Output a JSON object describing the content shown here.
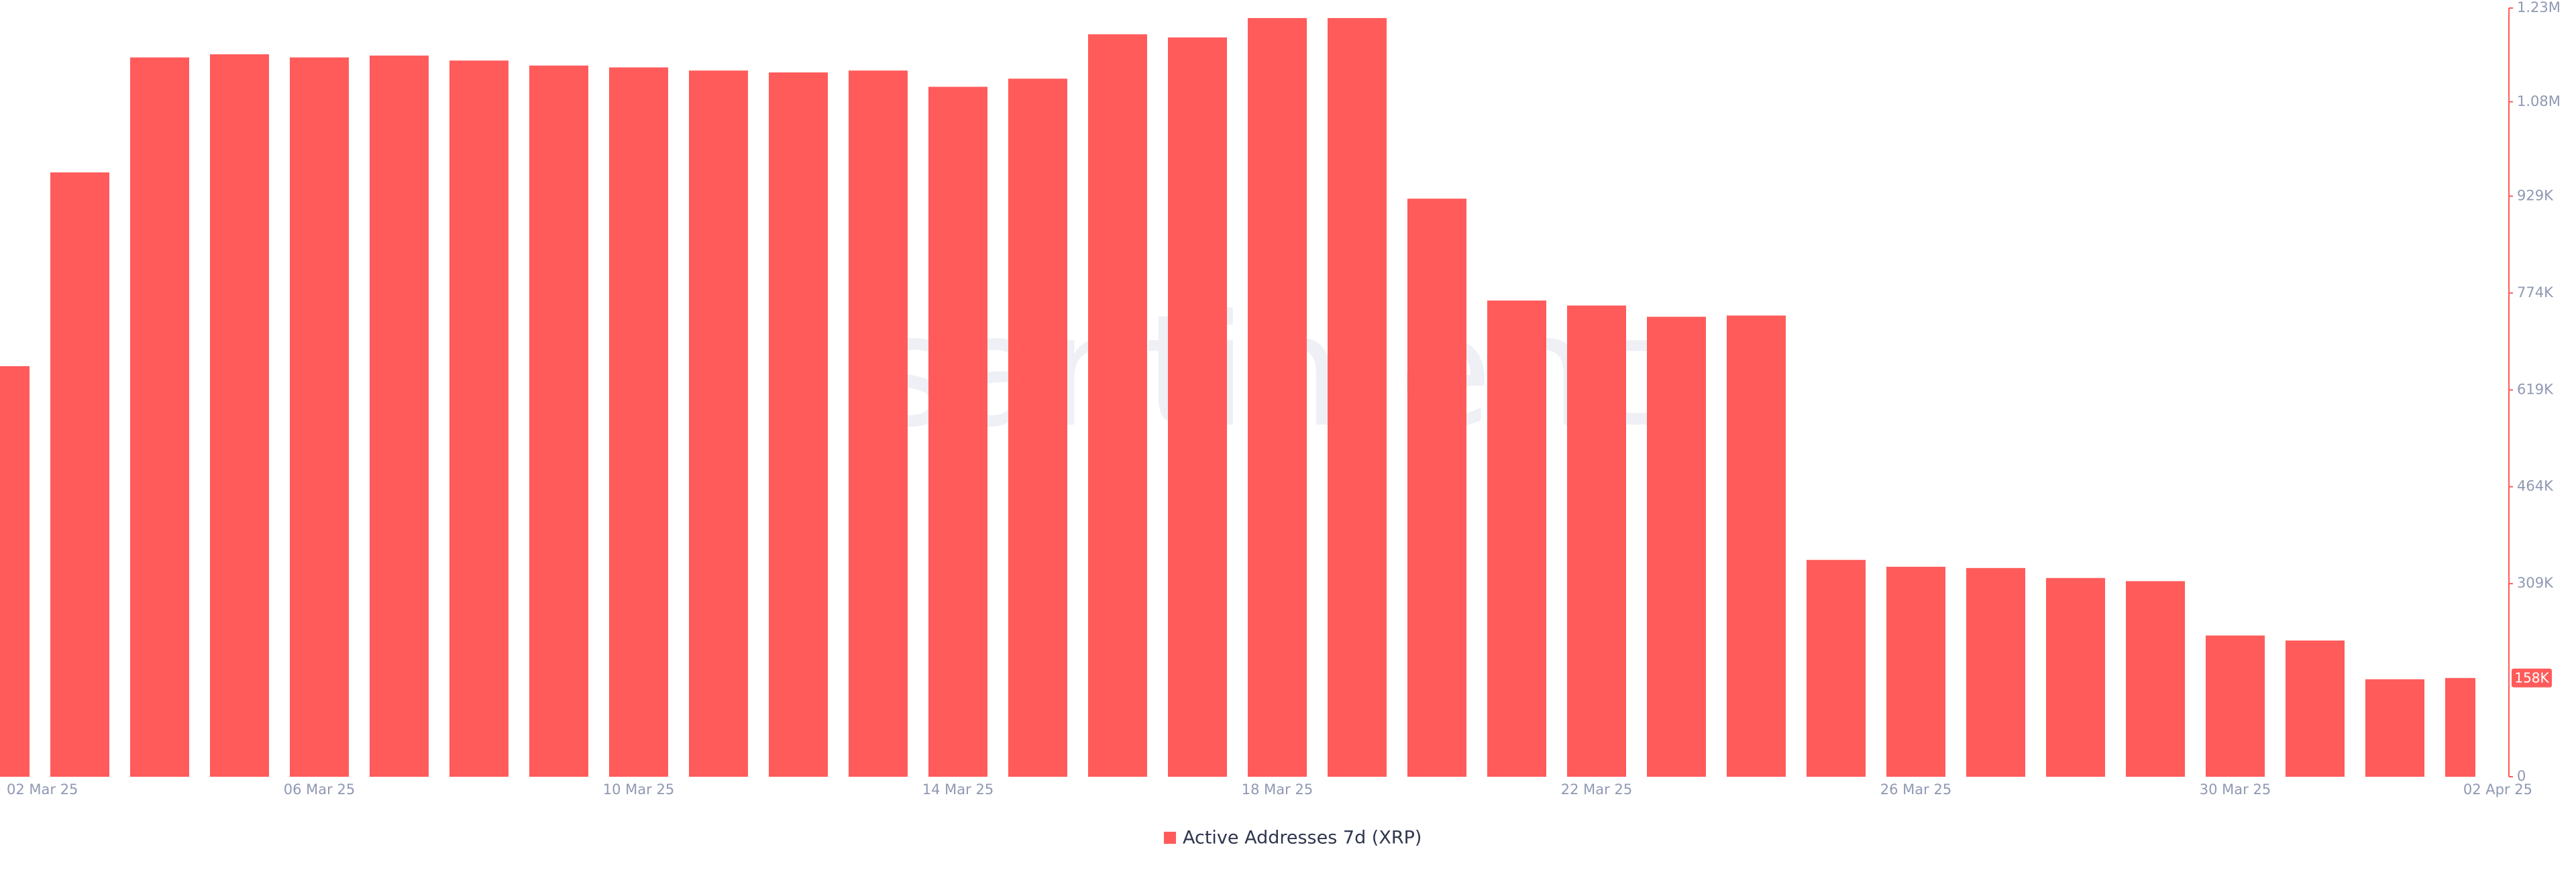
{
  "chart_data": {
    "type": "bar",
    "watermark": "santiment",
    "categories": [
      "02 Mar 25",
      null,
      null,
      null,
      "06 Mar 25",
      null,
      null,
      null,
      "10 Mar 25",
      null,
      null,
      null,
      "14 Mar 25",
      null,
      null,
      null,
      "18 Mar 25",
      null,
      null,
      null,
      "22 Mar 25",
      null,
      null,
      null,
      "26 Mar 25",
      null,
      null,
      null,
      "30 Mar 25",
      null,
      null,
      "02 Apr 25"
    ],
    "series": [
      {
        "name": "Active Addresses 7d (XRP)",
        "color": "#ff5b5b",
        "values": [
          657000,
          967000,
          1151000,
          1156000,
          1151000,
          1154000,
          1146000,
          1138000,
          1135000,
          1130000,
          1127000,
          1130000,
          1104000,
          1117000,
          1188000,
          1183000,
          1214000,
          1214000,
          925000,
          762000,
          754000,
          736000,
          738000,
          347000,
          336000,
          334000,
          318000,
          313000,
          226000,
          218000,
          156000,
          158000
        ],
        "value_labels": [
          null,
          null,
          null,
          null,
          null,
          null,
          null,
          null,
          null,
          null,
          null,
          null,
          null,
          null,
          null,
          null,
          null,
          null,
          null,
          null,
          null,
          null,
          null,
          null,
          null,
          null,
          null,
          null,
          null,
          null,
          null,
          "158K"
        ]
      }
    ],
    "ylim": [
      0,
      1230000
    ],
    "yticks": [
      0,
      {
        "value": 309000,
        "label": "309K"
      },
      {
        "value": 464000,
        "label": "464K"
      },
      {
        "value": 619000,
        "label": "619K"
      },
      {
        "value": 774000,
        "label": "774K"
      },
      {
        "value": 929000,
        "label": "929K"
      },
      {
        "value": 1080000,
        "label": "1.08M"
      },
      {
        "value": 1230000,
        "label": "1.23M"
      }
    ],
    "grid": false
  }
}
